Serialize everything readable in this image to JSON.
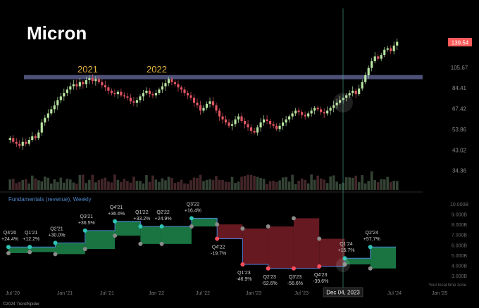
{
  "logo_text": "Micron",
  "year_labels": [
    "2021",
    "2022"
  ],
  "price_badge": "139.54",
  "fundamentals_label": "Fundamentals (revenue), Weekly",
  "cursor_date_label": "Dec 04, 2023",
  "timezone_label": "Your local time zone",
  "footer": "©2024 TrendSpider",
  "colors": {
    "background": "#000000",
    "up_candle": "#b7e4a0",
    "down_candle": "#e05561",
    "resistance_band": "#5a5f8c",
    "beat_fill": "#1a7a45",
    "miss_fill": "#6b1a22",
    "beat_dot": "#2ec4b6",
    "miss_dot": "#ff4d5e",
    "guide_dot": "#8a8a8a",
    "price_badge": "#ff5a5a",
    "cursor_line": "#4aa38a",
    "label_text": "#d0d0d0",
    "fundamentals_label": "#4f87c9"
  },
  "chart_data": [
    {
      "type": "line",
      "subtype": "candlestick",
      "x_ticks": [
        "Jul '20",
        "Jan '21",
        "Jul '21",
        "Jan '22",
        "Jul '22",
        "Jan '23",
        "Jul '23",
        "Jan '24",
        "Jul '24",
        "Jan '25"
      ],
      "y_ticks": [
        139.54,
        105.67,
        84.41,
        67.42,
        53.86,
        43.02,
        34.36
      ],
      "y_tick_labels": [
        "139.54",
        "105.67",
        "84.41",
        "67.42",
        "53.86",
        "43.02",
        "34.36"
      ],
      "y_scale": "log",
      "ylim": [
        32,
        150
      ],
      "resistance_level": 95,
      "last_price": 139.54,
      "weekly_close": [
        49,
        47,
        46,
        45,
        47,
        46,
        48,
        50,
        49,
        52,
        58,
        61,
        64,
        67,
        70,
        74,
        77,
        80,
        83,
        86,
        88,
        86,
        90,
        88,
        92,
        94,
        91,
        93,
        90,
        87,
        85,
        82,
        80,
        79,
        81,
        78,
        77,
        76,
        73,
        72,
        74,
        77,
        80,
        82,
        79,
        78,
        80,
        83,
        86,
        89,
        93,
        90,
        88,
        85,
        83,
        80,
        78,
        76,
        72,
        70,
        66,
        68,
        71,
        73,
        70,
        66,
        62,
        60,
        58,
        56,
        57,
        60,
        62,
        59,
        57,
        55,
        53,
        52,
        55,
        58,
        60,
        59,
        57,
        56,
        54,
        56,
        58,
        60,
        62,
        64,
        66,
        65,
        63,
        62,
        64,
        66,
        68,
        67,
        65,
        64,
        66,
        68,
        70,
        72,
        74,
        76,
        78,
        80,
        82,
        79,
        84,
        90,
        97,
        105,
        113,
        119,
        116,
        121,
        128,
        130,
        126,
        134,
        139.54
      ],
      "volume_range": [
        34.36,
        43.02
      ]
    },
    {
      "type": "line",
      "subtype": "step",
      "name": "Fundamentals (revenue), Weekly",
      "y_ticks": [
        10.0,
        9.0,
        8.0,
        7.0,
        6.0,
        5.0,
        4.0,
        3.0
      ],
      "y_tick_labels": [
        "10.000B",
        "9.000B",
        "8.000B",
        "7.000B",
        "6.000B",
        "5.000B",
        "4.000B",
        "3.000B"
      ],
      "ylim": [
        3.0,
        10.0
      ],
      "quarters": [
        {
          "label": "Q4'20",
          "change": "+24.4%",
          "actual": 5.8,
          "estimate": 5.2,
          "week_start": 0,
          "week_end": 10,
          "beat": true
        },
        {
          "label": "Q1'21",
          "change": "+12.2%",
          "actual": 5.8,
          "estimate": 5.3,
          "week_start": 10,
          "week_end": 22,
          "beat": true
        },
        {
          "label": "Q2'21",
          "change": "+30.0%",
          "actual": 6.2,
          "estimate": 5.1,
          "week_start": 22,
          "week_end": 36,
          "beat": true
        },
        {
          "label": "Q3'21",
          "change": "+36.5%",
          "actual": 7.4,
          "estimate": 5.6,
          "week_start": 36,
          "week_end": 50,
          "beat": true
        },
        {
          "label": "Q4'21",
          "change": "+36.6%",
          "actual": 8.3,
          "estimate": 6.9,
          "week_start": 50,
          "week_end": 62,
          "beat": true
        },
        {
          "label": "Q1'22",
          "change": "+33.2%",
          "actual": 7.8,
          "estimate": 6.1,
          "week_start": 62,
          "week_end": 72,
          "beat": true
        },
        {
          "label": "Q2'22",
          "change": "+24.9%",
          "actual": 7.8,
          "estimate": 6.1,
          "week_start": 72,
          "week_end": 86,
          "beat": true
        },
        {
          "label": "Q3'22",
          "change": "+16.4%",
          "actual": 8.6,
          "estimate": 7.8,
          "week_start": 86,
          "week_end": 98,
          "beat": true
        },
        {
          "label": "Q4'22",
          "change": "-19.7%",
          "actual": 6.6,
          "estimate": 8.0,
          "week_start": 98,
          "week_end": 110,
          "beat": false
        },
        {
          "label": "Q1'23",
          "change": "-46.9%",
          "actual": 4.1,
          "estimate": 7.6,
          "week_start": 110,
          "week_end": 122,
          "beat": false
        },
        {
          "label": "Q2'23",
          "change": "-52.6%",
          "actual": 3.7,
          "estimate": 7.8,
          "week_start": 122,
          "week_end": 134,
          "beat": false
        },
        {
          "label": "Q3'23",
          "change": "-56.6%",
          "actual": 3.7,
          "estimate": 8.6,
          "week_start": 134,
          "week_end": 146,
          "beat": false
        },
        {
          "label": "Q4'23",
          "change": "-39.6%",
          "actual": 3.9,
          "estimate": 6.6,
          "week_start": 146,
          "week_end": 158,
          "beat": false
        },
        {
          "label": "Q1'24",
          "change": "+15.7%",
          "actual": 4.7,
          "estimate": 4.1,
          "week_start": 158,
          "week_end": 170,
          "beat": true
        },
        {
          "label": "Q2'24",
          "change": "+57.7%",
          "actual": 5.8,
          "estimate": 3.7,
          "week_start": 170,
          "week_end": 182,
          "beat": true
        }
      ]
    }
  ]
}
